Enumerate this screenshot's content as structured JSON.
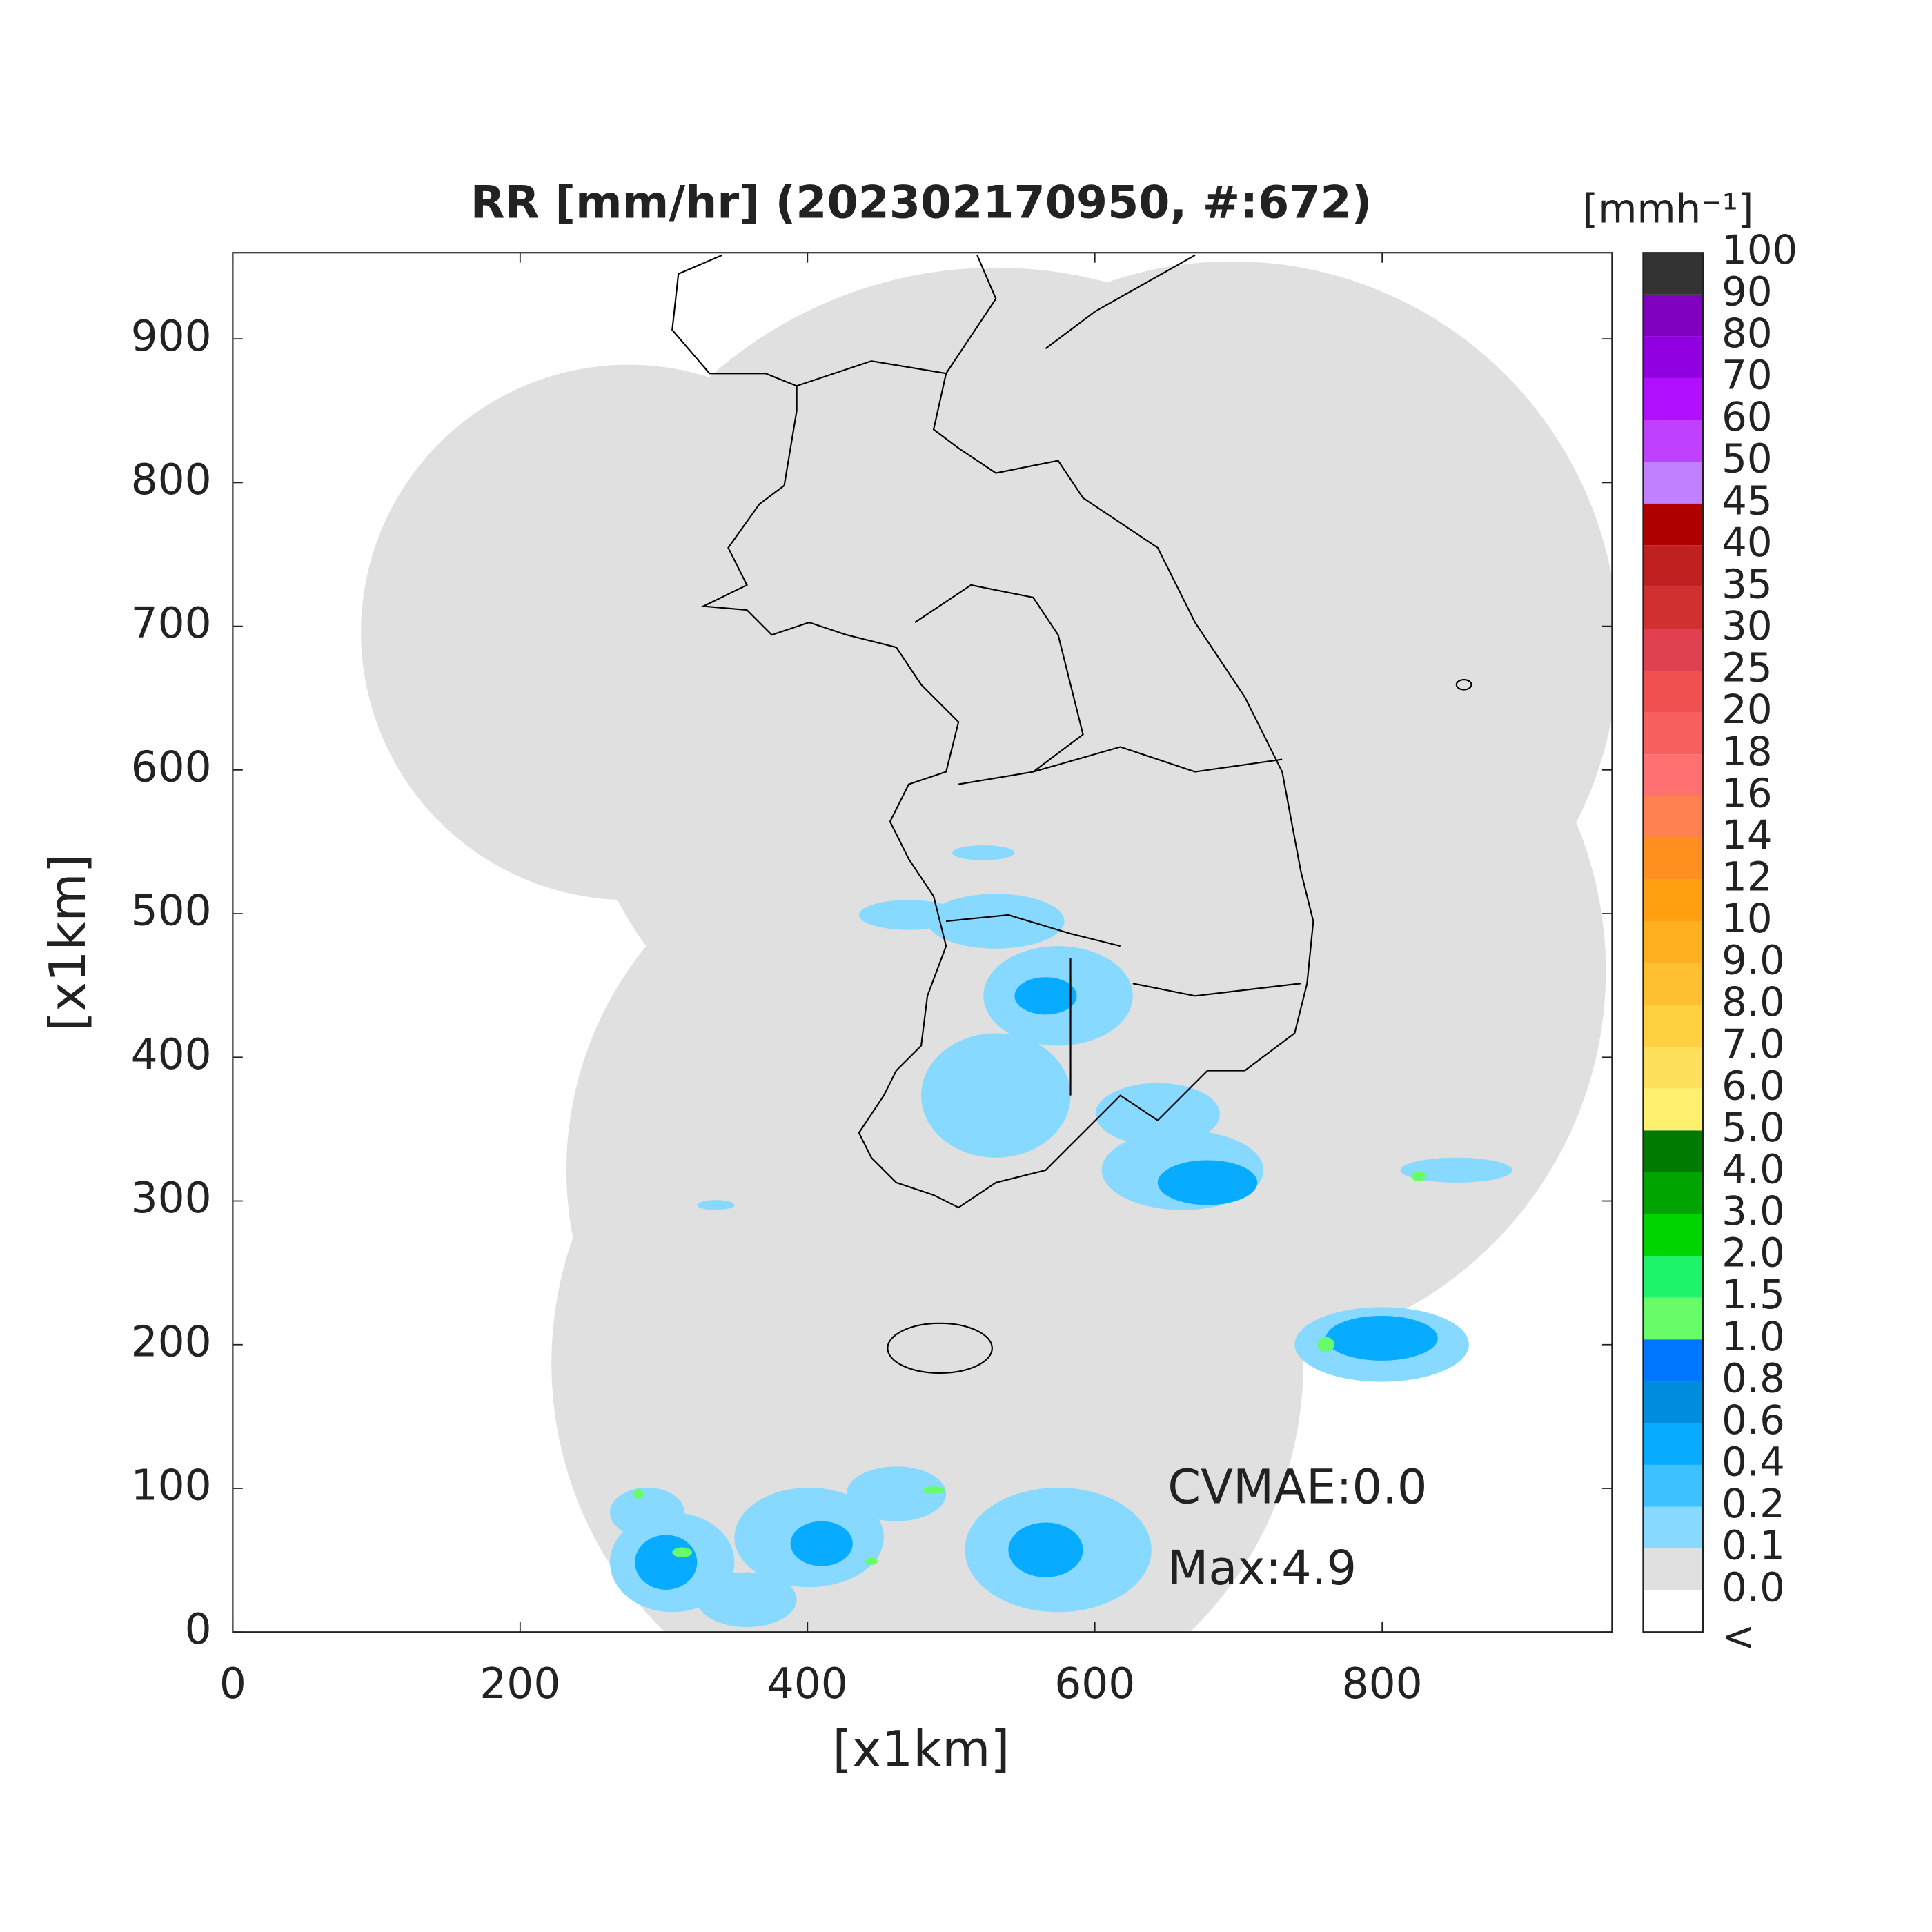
{
  "chart_data": {
    "type": "map",
    "title": "RR [mm/hr] (202302170950, #:672)",
    "x_label": "[x1km]",
    "y_label": "[x1km]",
    "xlim": [
      0,
      960
    ],
    "ylim": [
      0,
      960
    ],
    "xticks": [
      0,
      200,
      400,
      600,
      800
    ],
    "yticks": [
      0,
      100,
      200,
      300,
      400,
      500,
      600,
      700,
      800,
      900
    ],
    "annotations": [
      "CVMAE:0.0",
      "Max:4.9"
    ],
    "colorbar": {
      "unit": "[mmh⁻¹]",
      "labels": [
        "<",
        "0.0",
        "0.1",
        "0.2",
        "0.4",
        "0.6",
        "0.8",
        "1.0",
        "1.5",
        "2.0",
        "3.0",
        "4.0",
        "5.0",
        "6.0",
        "7.0",
        "8.0",
        "9.0",
        "10",
        "12",
        "14",
        "16",
        "18",
        "20",
        "25",
        "30",
        "35",
        "40",
        "45",
        "50",
        "60",
        "70",
        "80",
        "90",
        "100"
      ],
      "colors": [
        "#ffffff",
        "#e0e0e0",
        "#87d9ff",
        "#3ec1ff",
        "#07abff",
        "#008dde",
        "#0077ff",
        "#69fc69",
        "#1ef46a",
        "#00d500",
        "#00a400",
        "#007a00",
        "#fff06e",
        "#ffe05a",
        "#ffd040",
        "#ffc030",
        "#ffb020",
        "#ffa010",
        "#ff9020",
        "#ff8050",
        "#ff7070",
        "#f86060",
        "#f05050",
        "#e04050",
        "#d03030",
        "#c02020",
        "#b00000",
        "#c080ff",
        "#c040ff",
        "#b010ff",
        "#9000e0",
        "#8000c0",
        "#333333"
      ]
    }
  }
}
